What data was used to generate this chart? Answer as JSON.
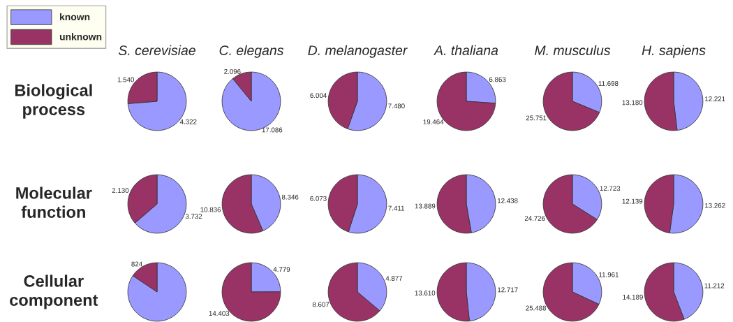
{
  "chart_data": [
    {
      "type": "pie",
      "title": "S. cerevisiae",
      "ylabel": "Biological\nprocess",
      "categories": [
        "known",
        "unknown"
      ],
      "values": [
        4322,
        1540
      ],
      "value_labels": [
        "4.322",
        "1.540"
      ],
      "colors": [
        "#9999ff",
        "#993366"
      ],
      "legend": "top left"
    },
    {
      "type": "pie",
      "title": "C. elegans",
      "categories": [
        null,
        null
      ],
      "values": [
        17086,
        2096
      ],
      "value_labels": [
        "17.086",
        "2.096"
      ],
      "colors": [
        "#9999ff",
        "#993366"
      ]
    },
    {
      "type": "pie",
      "title": "D. melanogaster",
      "categories": [
        null,
        null
      ],
      "values": [
        7480,
        6004
      ],
      "value_labels": [
        "7.480",
        "6.004"
      ],
      "colors": [
        "#9999ff",
        "#993366"
      ]
    },
    {
      "type": "pie",
      "title": "A. thaliana",
      "categories": [
        null,
        null
      ],
      "values": [
        6863,
        19464
      ],
      "value_labels": [
        "6.863",
        "19.464"
      ],
      "colors": [
        "#9999ff",
        "#993366"
      ]
    },
    {
      "type": "pie",
      "title": "M. musculus",
      "categories": [
        null,
        null
      ],
      "values": [
        11698,
        25751
      ],
      "value_labels": [
        "11.698",
        "25.751"
      ],
      "colors": [
        "#9999ff",
        "#993366"
      ]
    },
    {
      "type": "pie",
      "title": "H. sapiens",
      "categories": [
        null,
        null
      ],
      "values": [
        12221,
        13180
      ],
      "value_labels": [
        "12.221",
        "13.180"
      ],
      "colors": [
        "#9999ff",
        "#993366"
      ]
    },
    {
      "type": "pie",
      "ylabel": "Molecular\nfunction",
      "categories": [
        null,
        null
      ],
      "values": [
        3732,
        2130
      ],
      "value_labels": [
        "3.732",
        "2.130"
      ],
      "colors": [
        "#9999ff",
        "#993366"
      ]
    },
    {
      "type": "pie",
      "categories": [
        null,
        null
      ],
      "values": [
        8346,
        10836
      ],
      "value_labels": [
        "8.346",
        "10.836"
      ],
      "colors": [
        "#9999ff",
        "#993366"
      ]
    },
    {
      "type": "pie",
      "categories": [
        null,
        null
      ],
      "values": [
        7411,
        6073
      ],
      "value_labels": [
        "7.411",
        "6.073"
      ],
      "colors": [
        "#9999ff",
        "#993366"
      ]
    },
    {
      "type": "pie",
      "categories": [
        null,
        null
      ],
      "values": [
        12438,
        13889
      ],
      "value_labels": [
        "12.438",
        "13.889"
      ],
      "colors": [
        "#9999ff",
        "#993366"
      ]
    },
    {
      "type": "pie",
      "categories": [
        null,
        null
      ],
      "values": [
        12723,
        24726
      ],
      "value_labels": [
        "12.723",
        "24.726"
      ],
      "colors": [
        "#9999ff",
        "#993366"
      ]
    },
    {
      "type": "pie",
      "categories": [
        null,
        null
      ],
      "values": [
        13262,
        12139
      ],
      "value_labels": [
        "13.262",
        "12.139"
      ],
      "colors": [
        "#9999ff",
        "#993366"
      ]
    },
    {
      "type": "pie",
      "ylabel": "Cellular\ncomponent",
      "categories": [
        null,
        null
      ],
      "values": [
        4460,
        824
      ],
      "value_labels": [
        null,
        "824"
      ],
      "colors": [
        "#9999ff",
        "#993366"
      ]
    },
    {
      "type": "pie",
      "categories": [
        null,
        null
      ],
      "values": [
        4779,
        14403
      ],
      "value_labels": [
        "4.779",
        "14.403"
      ],
      "colors": [
        "#9999ff",
        "#993366"
      ]
    },
    {
      "type": "pie",
      "categories": [
        null,
        null
      ],
      "values": [
        4877,
        8607
      ],
      "value_labels": [
        "4.877",
        "8.607"
      ],
      "colors": [
        "#9999ff",
        "#993366"
      ]
    },
    {
      "type": "pie",
      "categories": [
        null,
        null
      ],
      "values": [
        12717,
        13610
      ],
      "value_labels": [
        "12.717",
        "13.610"
      ],
      "colors": [
        "#9999ff",
        "#993366"
      ]
    },
    {
      "type": "pie",
      "categories": [
        null,
        null
      ],
      "values": [
        11961,
        25488
      ],
      "value_labels": [
        "11.961",
        "25.488"
      ],
      "colors": [
        "#9999ff",
        "#993366"
      ]
    },
    {
      "type": "pie",
      "categories": [
        null,
        null
      ],
      "values": [
        11212,
        14189
      ],
      "value_labels": [
        "11.212",
        "14.189"
      ],
      "colors": [
        "#9999ff",
        "#993366"
      ]
    }
  ]
}
